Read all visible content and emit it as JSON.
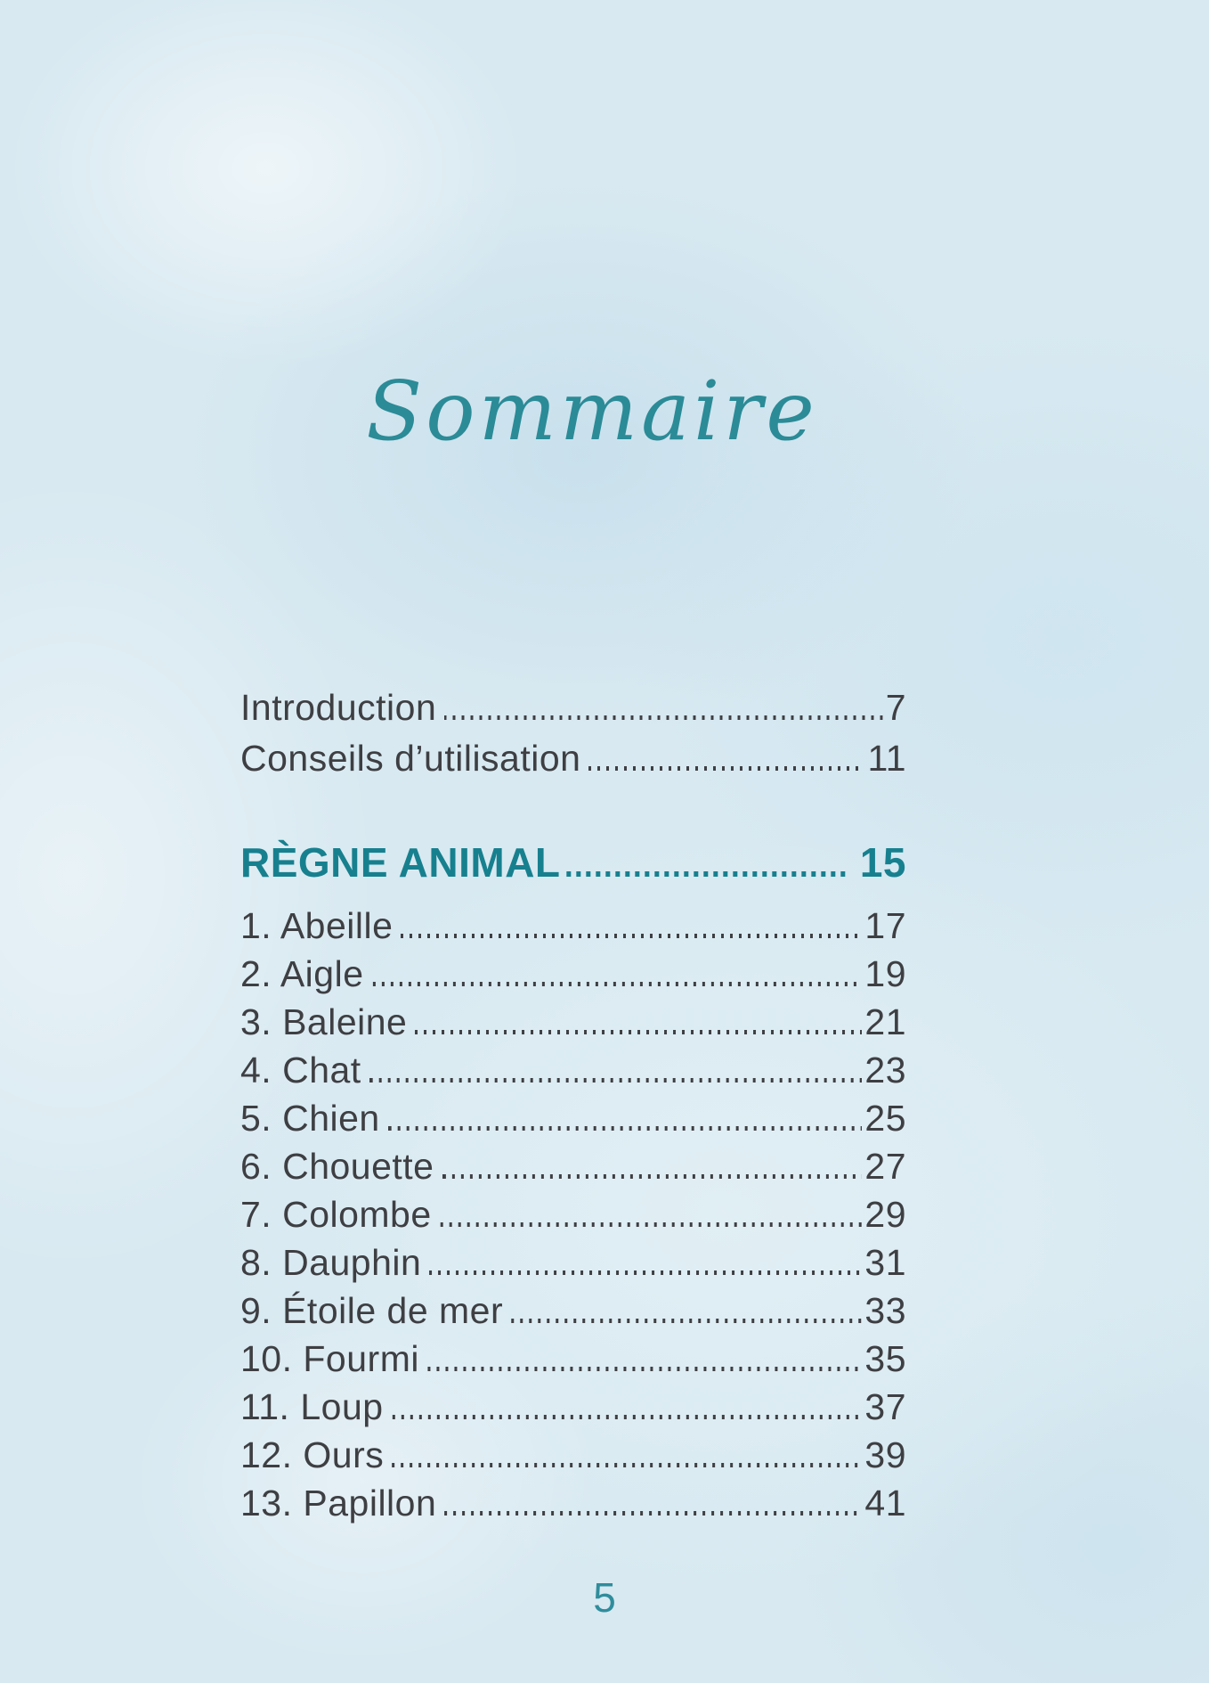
{
  "page": {
    "title": "Sommaire",
    "folio": "5"
  },
  "toc": {
    "front_matter": [
      {
        "label": "Introduction",
        "page": "7"
      },
      {
        "label": "Conseils d’utilisation",
        "page": "11"
      }
    ],
    "section": {
      "label": "RÈGNE ANIMAL",
      "page": "15"
    },
    "entries": [
      {
        "label": "1. Abeille",
        "page": "17"
      },
      {
        "label": "2. Aigle",
        "page": "19"
      },
      {
        "label": "3. Baleine",
        "page": "21"
      },
      {
        "label": "4. Chat",
        "page": "23"
      },
      {
        "label": "5. Chien",
        "page": "25"
      },
      {
        "label": "6. Chouette",
        "page": "27"
      },
      {
        "label": "7. Colombe",
        "page": "29"
      },
      {
        "label": "8. Dauphin",
        "page": "31"
      },
      {
        "label": "9. Étoile de mer",
        "page": "33"
      },
      {
        "label": "10. Fourmi",
        "page": "35"
      },
      {
        "label": "11. Loup",
        "page": "37"
      },
      {
        "label": "12. Ours",
        "page": "39"
      },
      {
        "label": "13. Papillon",
        "page": "41"
      }
    ]
  },
  "colors": {
    "background": "#d8e9f1",
    "body_text": "#3e3f43",
    "title_teal": "#2b8b97",
    "heading_teal": "#17808f",
    "folio_teal": "#2f8d9c"
  }
}
